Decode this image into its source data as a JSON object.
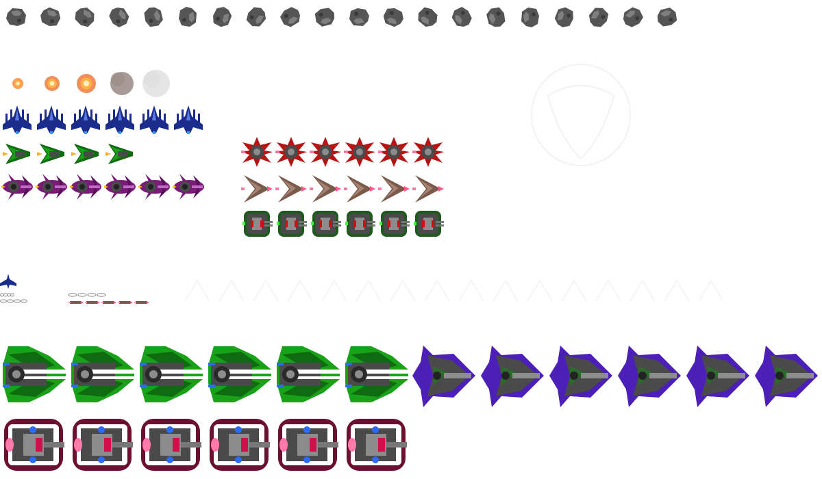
{
  "sheet": {
    "background": "#ffffff",
    "rows": [
      {
        "name": "asteroid-row",
        "sprite": "asteroid",
        "count": 20
      },
      {
        "name": "explosion-row",
        "sprite": "explosion",
        "count": 5
      },
      {
        "name": "blue-fighter-row",
        "sprite": "blue-fighter",
        "count": 6
      },
      {
        "name": "green-dart-row",
        "sprite": "green-dart",
        "count": 4
      },
      {
        "name": "purple-crab-row",
        "sprite": "purple-crab",
        "count": 6
      },
      {
        "name": "red-spiked-row",
        "sprite": "red-spiked",
        "count": 6
      },
      {
        "name": "brown-chevron-row",
        "sprite": "brown-chevron",
        "count": 6
      },
      {
        "name": "green-tank-row",
        "sprite": "green-tank",
        "count": 6
      },
      {
        "name": "mini-icons-row",
        "sprite": "mini",
        "count": 1
      },
      {
        "name": "green-boss-row",
        "sprite": "green-boss",
        "count": 6
      },
      {
        "name": "violet-boss-row",
        "sprite": "violet-boss",
        "count": 6
      },
      {
        "name": "red-boss-row",
        "sprite": "red-boss",
        "count": 6
      }
    ],
    "colors": {
      "asteroid": "#555555",
      "asteroid_light": "#8a8a8a",
      "explosion_core": "#ffb347",
      "smoke": "#a9a9a9",
      "blue": "#1b2d8c",
      "blue_light": "#5b7be0",
      "green": "#19a119",
      "green_dark": "#0f6b0f",
      "purple": "#7a1b7a",
      "red": "#b81414",
      "brown": "#7a5a4a",
      "hull": "#4a4a4a",
      "hull_light": "#8c8c8c",
      "violet": "#4c1fb8",
      "maroon": "#6b1030",
      "pink": "#ff7aa8",
      "engine_blue": "#2a6bff"
    }
  }
}
